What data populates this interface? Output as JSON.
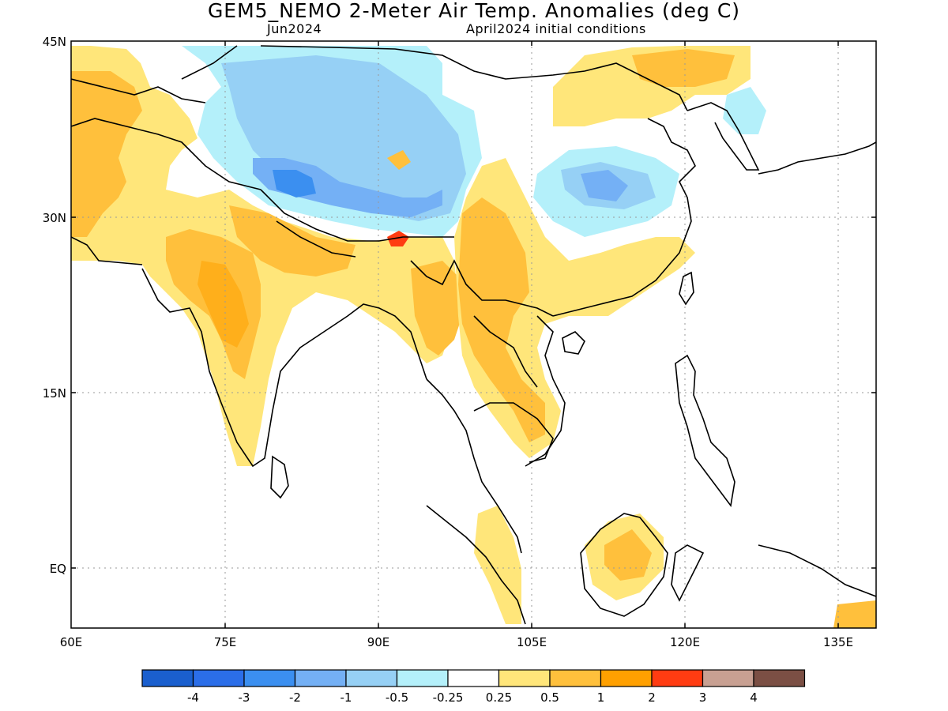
{
  "title": "GEM5_NEMO 2-Meter Air Temp. Anomalies (deg C)",
  "subtitle_left": "Jun2024",
  "subtitle_right": "April2024 initial conditions",
  "lat_labels": [
    "45N",
    "30N",
    "15N",
    "EQ"
  ],
  "lon_labels": [
    "60E",
    "75E",
    "90E",
    "105E",
    "120E",
    "135E"
  ],
  "colorbar": {
    "colors": [
      "#1a5fce",
      "#2b6ee8",
      "#3b8ff0",
      "#74b0f5",
      "#96d0f5",
      "#b4f0fa",
      "#ffffff",
      "#ffe67a",
      "#ffc03c",
      "#ffa000",
      "#ff3c12",
      "#c8a092",
      "#7b4f44"
    ],
    "labels": [
      "-4",
      "-3",
      "-2",
      "-1",
      "-0.5",
      "-0.25",
      "0.25",
      "0.5",
      "1",
      "2",
      "3",
      "4"
    ]
  }
}
